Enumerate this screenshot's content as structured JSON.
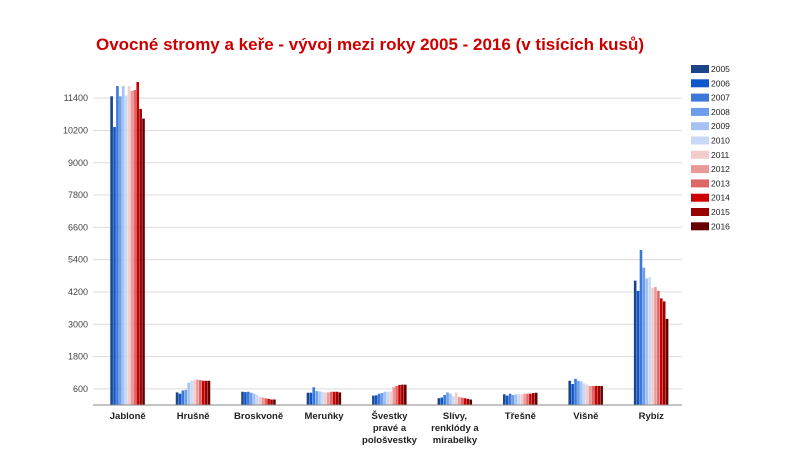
{
  "chart_data": {
    "type": "bar",
    "title": "Ovocné stromy a keře - vývoj mezi roky 2005 - 2016 (v tisících kusů)",
    "title_color": "#cc0000",
    "xlabel": "",
    "ylabel": "",
    "ylim": [
      0,
      12000
    ],
    "yticks": [
      600,
      1800,
      3000,
      4200,
      5400,
      6600,
      7800,
      9000,
      10200,
      11400
    ],
    "grid": true,
    "legend_position": "right",
    "categories": [
      [
        "Jabloně"
      ],
      [
        "Hrušně"
      ],
      [
        "Broskvoně"
      ],
      [
        "Meruňky"
      ],
      [
        "Švestky",
        "pravé a",
        "pološvestky"
      ],
      [
        "Slívy,",
        "renklódy a",
        "mirabelky"
      ],
      [
        "Třešně"
      ],
      [
        "Višně"
      ],
      [
        "Rybíz"
      ]
    ],
    "series": [
      {
        "name": "2005",
        "color": "#1c4587",
        "values": [
          11470,
          468,
          492,
          456,
          348,
          252,
          396,
          900,
          4620
        ]
      },
      {
        "name": "2006",
        "color": "#1155cc",
        "values": [
          10330,
          420,
          480,
          456,
          360,
          276,
          348,
          780,
          4240
        ]
      },
      {
        "name": "2007",
        "color": "#3c78d8",
        "values": [
          11850,
          540,
          492,
          660,
          420,
          372,
          420,
          972,
          5760
        ]
      },
      {
        "name": "2008",
        "color": "#6d9eeb",
        "values": [
          11470,
          564,
          456,
          516,
          444,
          468,
          372,
          900,
          5100
        ]
      },
      {
        "name": "2009",
        "color": "#a4c2f4",
        "values": [
          11850,
          828,
          420,
          504,
          492,
          420,
          396,
          876,
          4700
        ]
      },
      {
        "name": "2010",
        "color": "#c9daf8",
        "values": [
          11500,
          900,
          372,
          480,
          492,
          324,
          396,
          804,
          4750
        ]
      },
      {
        "name": "2011",
        "color": "#f4cccc",
        "values": [
          11850,
          924,
          300,
          468,
          504,
          468,
          396,
          756,
          4360
        ]
      },
      {
        "name": "2012",
        "color": "#ea9999",
        "values": [
          11670,
          948,
          276,
          468,
          660,
          300,
          420,
          708,
          4380
        ]
      },
      {
        "name": "2013",
        "color": "#e06666",
        "values": [
          11700,
          924,
          252,
          492,
          708,
          276,
          420,
          708,
          4240
        ]
      },
      {
        "name": "2014",
        "color": "#cc0000",
        "values": [
          12000,
          900,
          228,
          492,
          744,
          252,
          420,
          708,
          3960
        ]
      },
      {
        "name": "2015",
        "color": "#990000",
        "values": [
          11000,
          900,
          204,
          492,
          756,
          228,
          444,
          708,
          3850
        ]
      },
      {
        "name": "2016",
        "color": "#660000",
        "values": [
          10640,
          900,
          204,
          468,
          756,
          204,
          456,
          708,
          3200
        ]
      }
    ]
  }
}
